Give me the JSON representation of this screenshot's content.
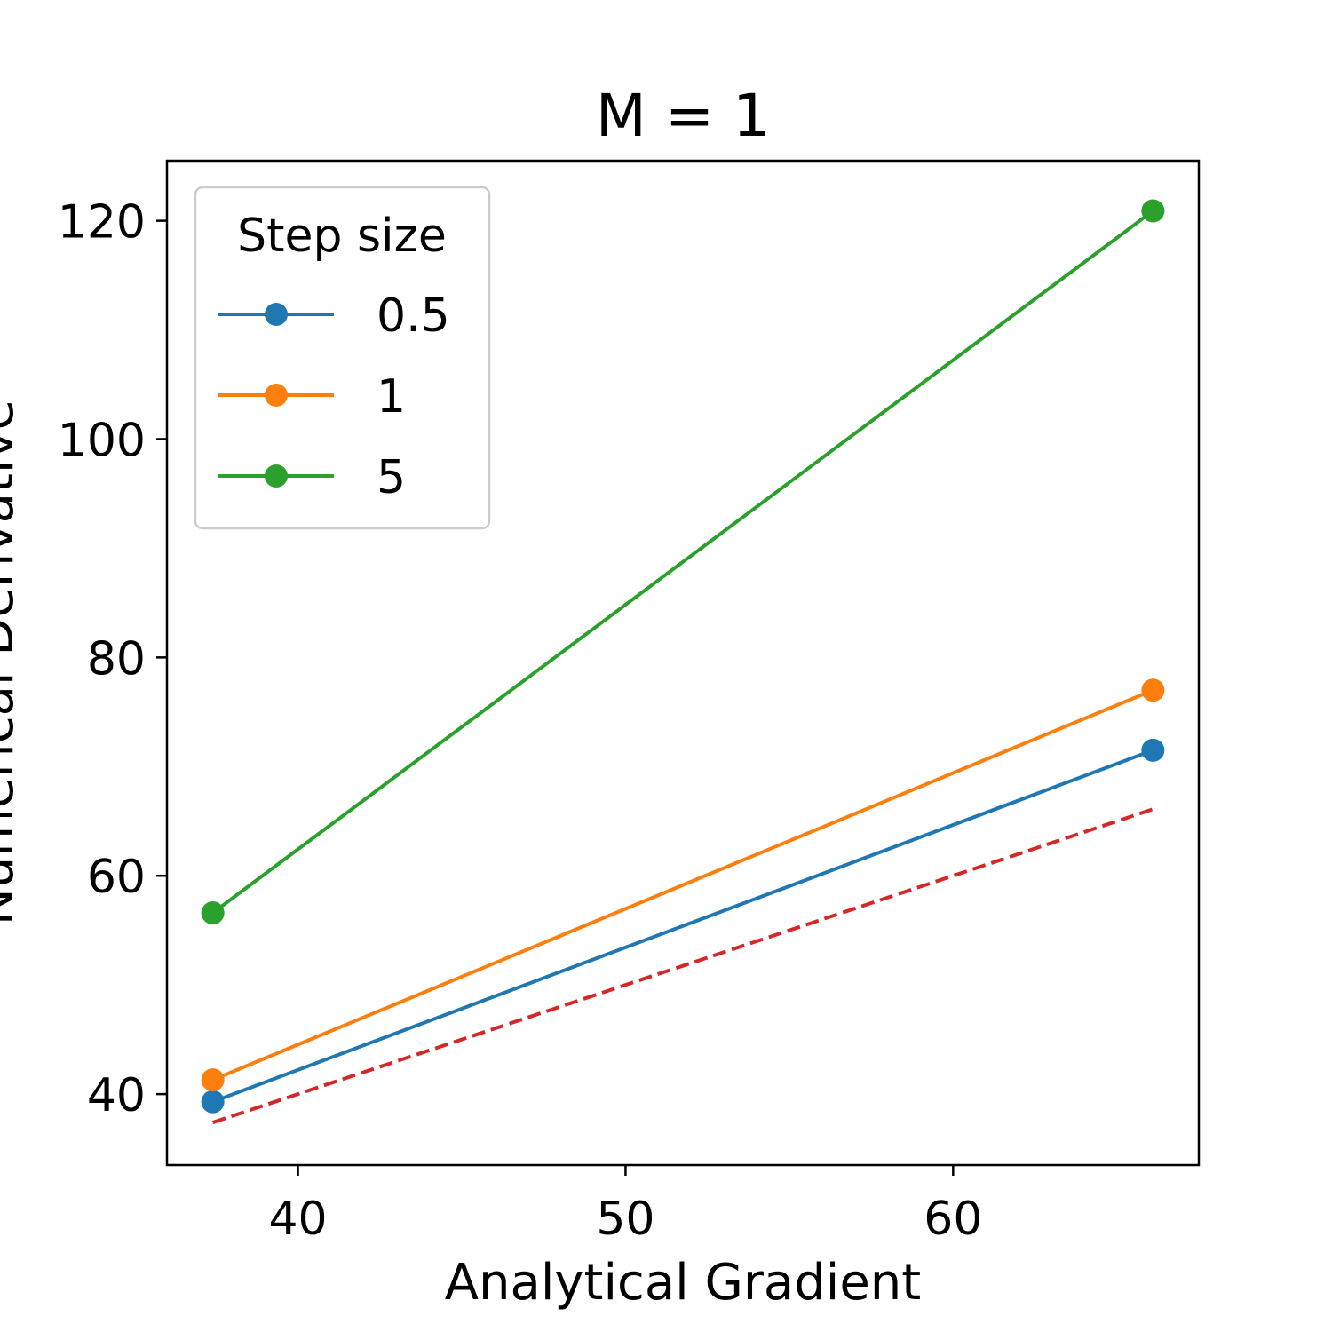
{
  "chart_data": {
    "type": "line",
    "title": "M = 1",
    "xlabel": "Analytical Gradient",
    "ylabel": "Numerical Derivative",
    "xlim": [
      36,
      67.5
    ],
    "ylim": [
      33.5,
      125.5
    ],
    "xticks": [
      40,
      50,
      60
    ],
    "yticks": [
      40,
      60,
      80,
      100,
      120
    ],
    "grid": false,
    "legend": {
      "title": "Step size",
      "placement": "top-left"
    },
    "x": [
      37.4,
      66.1
    ],
    "series": [
      {
        "name": "0.5",
        "color": "#1f77b4",
        "marker": "circle",
        "values": [
          39.3,
          71.5
        ]
      },
      {
        "name": "1",
        "color": "#ff7f0e",
        "marker": "circle",
        "values": [
          41.3,
          77.0
        ]
      },
      {
        "name": "5",
        "color": "#2ca02c",
        "marker": "circle",
        "values": [
          56.6,
          120.9
        ]
      }
    ],
    "reference_line": {
      "style": "dashed",
      "color": "#d62728",
      "x": [
        37.4,
        66.1
      ],
      "values": [
        37.4,
        66.1
      ]
    }
  }
}
